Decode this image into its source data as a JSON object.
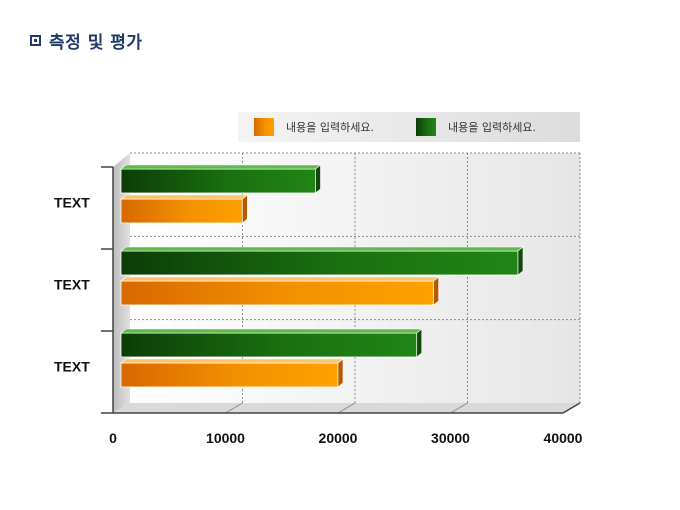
{
  "page": {
    "title": "측정 및 평가"
  },
  "chart_data": {
    "type": "bar",
    "orientation": "horizontal",
    "categories": [
      "TEXT",
      "TEXT",
      "TEXT"
    ],
    "series": [
      {
        "name": "내용을 입력하세요.",
        "values": [
          11500,
          28500,
          20000
        ],
        "color": "#f08c00"
      },
      {
        "name": "내용을 입력하세요.",
        "values": [
          18000,
          36000,
          27000
        ],
        "color": "#1e7a10"
      }
    ],
    "legend_order": [
      0,
      1
    ],
    "xlim": [
      0,
      40000
    ],
    "xticks": [
      "0",
      "10000",
      "20000",
      "30000",
      "40000"
    ],
    "tick_values": [
      0,
      10000,
      20000,
      30000,
      40000
    ],
    "grid": true,
    "legend_position": "top-right"
  }
}
